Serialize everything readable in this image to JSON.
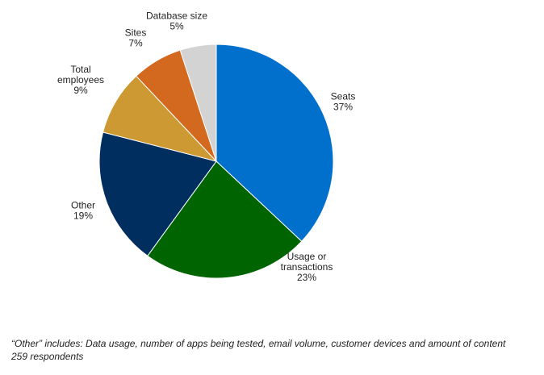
{
  "chart_data": {
    "type": "pie",
    "slices": [
      {
        "label": [
          "Seats"
        ],
        "percent_label": "37%",
        "value": 37,
        "color": "#0070cc"
      },
      {
        "label": [
          "Usage or",
          "transactions"
        ],
        "percent_label": "23%",
        "value": 23,
        "color": "#006400"
      },
      {
        "label": [
          "Other"
        ],
        "percent_label": "19%",
        "value": 19,
        "color": "#002e5f"
      },
      {
        "label": [
          "Total",
          "employees"
        ],
        "percent_label": "9%",
        "value": 9,
        "color": "#cc9933"
      },
      {
        "label": [
          "Sites"
        ],
        "percent_label": "7%",
        "value": 7,
        "color": "#d2691e"
      },
      {
        "label": [
          "Database size"
        ],
        "percent_label": "5%",
        "value": 5,
        "color": "#d3d3d3"
      }
    ]
  },
  "footnotes": {
    "other_note": "“Other” includes: Data usage, number of apps being tested, email volume, customer devices and amount of content",
    "respondents": "259 respondents"
  }
}
